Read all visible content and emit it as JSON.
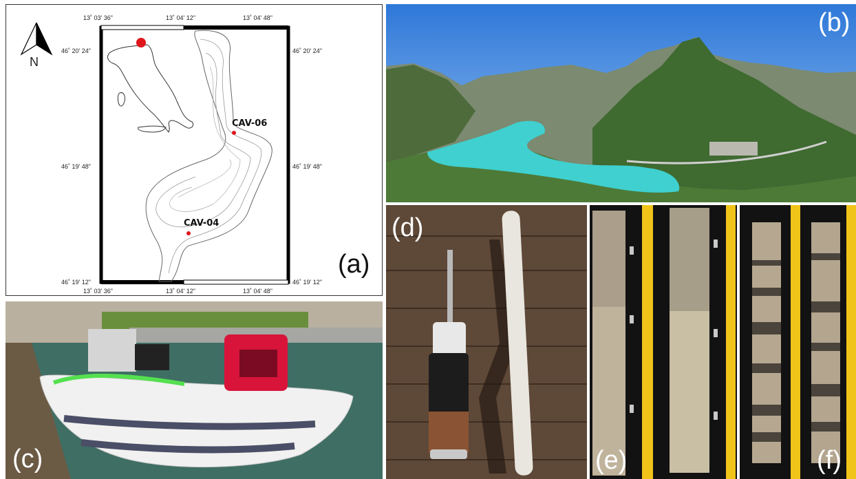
{
  "panels": {
    "a": {
      "label": "(a)",
      "north_label": "N",
      "coords_top": [
        "13˚ 03' 36\"",
        "13˚ 04' 12\"",
        "13˚ 04' 48\""
      ],
      "coords_bottom": [
        "13˚ 03' 36\"",
        "13˚ 04' 12\"",
        "13˚ 04' 48\""
      ],
      "coords_left": [
        "46˚ 20' 24\"",
        "46˚ 19' 48\"",
        "46˚ 19' 12\""
      ],
      "coords_right": [
        "46˚ 20' 24\"",
        "46˚ 19' 48\"",
        "46˚ 19' 12\""
      ],
      "sites": [
        "CAV-06",
        "CAV-04"
      ],
      "site_color": "#e0161b"
    },
    "b": {
      "label": "(b)"
    },
    "c": {
      "label": "(c)"
    },
    "d": {
      "label": "(d)"
    },
    "e": {
      "label": "(e)"
    },
    "f": {
      "label": "(f)"
    }
  }
}
